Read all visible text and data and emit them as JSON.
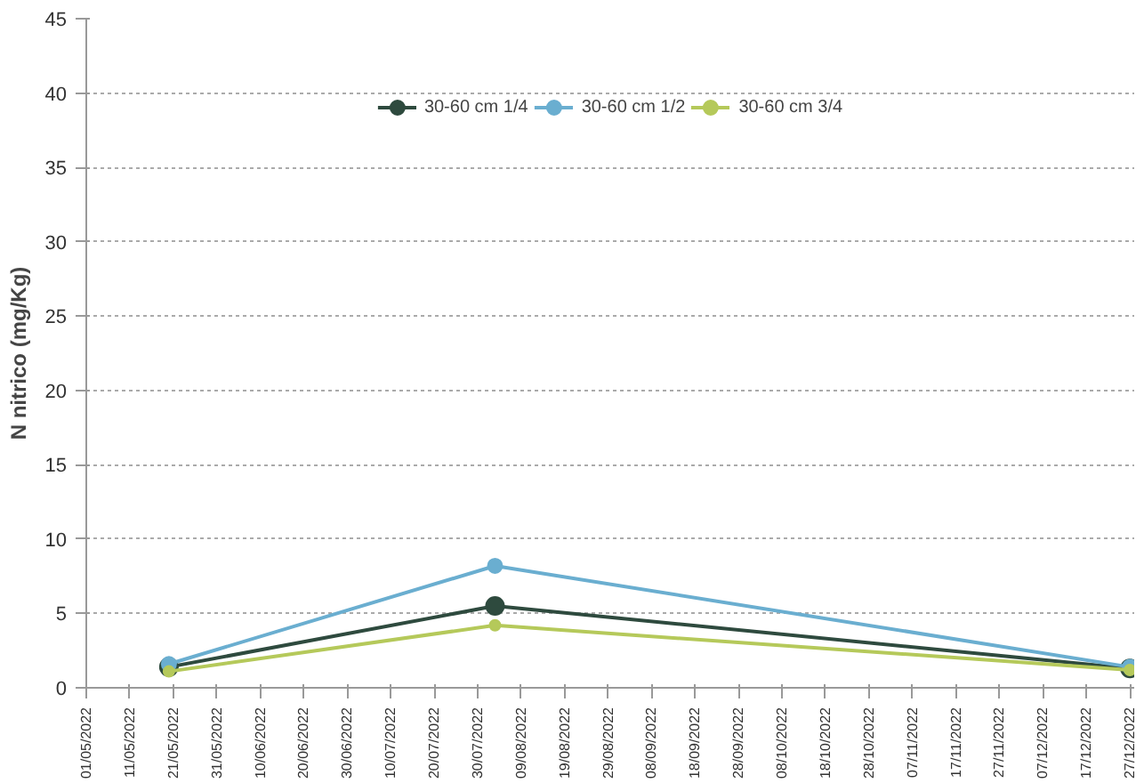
{
  "chart_data": {
    "type": "line",
    "ylabel": "N nitrico (mg/Kg)",
    "x": [
      "2022-05-20",
      "2022-08-03",
      "2022-12-27"
    ],
    "series": [
      {
        "name": "30-60 cm 1/4",
        "color": "#2e4a3e",
        "values": [
          1.4,
          5.5,
          1.3
        ]
      },
      {
        "name": "30-60 cm 1/2",
        "color": "#6aaed0",
        "values": [
          1.6,
          8.2,
          1.4
        ]
      },
      {
        "name": "30-60 cm 3/4",
        "color": "#b5c95a",
        "values": [
          1.1,
          4.2,
          1.2
        ]
      }
    ],
    "xlim": [
      "2022-05-01",
      "2022-12-28"
    ],
    "xticks": [
      {
        "value": "2022-05-01",
        "label": "01/05/2022"
      },
      {
        "value": "2022-05-11",
        "label": "11/05/2022"
      },
      {
        "value": "2022-05-21",
        "label": "21/05/2022"
      },
      {
        "value": "2022-05-31",
        "label": "31/05/2022"
      },
      {
        "value": "2022-06-10",
        "label": "10/06/2022"
      },
      {
        "value": "2022-06-20",
        "label": "20/06/2022"
      },
      {
        "value": "2022-06-30",
        "label": "30/06/2022"
      },
      {
        "value": "2022-07-10",
        "label": "10/07/2022"
      },
      {
        "value": "2022-07-20",
        "label": "20/07/2022"
      },
      {
        "value": "2022-07-30",
        "label": "30/07/2022"
      },
      {
        "value": "2022-08-09",
        "label": "09/08/2022"
      },
      {
        "value": "2022-08-19",
        "label": "19/08/2022"
      },
      {
        "value": "2022-08-29",
        "label": "29/08/2022"
      },
      {
        "value": "2022-09-08",
        "label": "08/09/2022"
      },
      {
        "value": "2022-09-18",
        "label": "18/09/2022"
      },
      {
        "value": "2022-09-28",
        "label": "28/09/2022"
      },
      {
        "value": "2022-10-08",
        "label": "08/10/2022"
      },
      {
        "value": "2022-10-18",
        "label": "18/10/2022"
      },
      {
        "value": "2022-10-28",
        "label": "28/10/2022"
      },
      {
        "value": "2022-11-07",
        "label": "07/11/2022"
      },
      {
        "value": "2022-11-17",
        "label": "17/11/2022"
      },
      {
        "value": "2022-11-27",
        "label": "27/11/2022"
      },
      {
        "value": "2022-12-07",
        "label": "07/12/2022"
      },
      {
        "value": "2022-12-17",
        "label": "17/12/2022"
      },
      {
        "value": "2022-12-27",
        "label": "27/12/2022"
      }
    ],
    "ylim": [
      0,
      45
    ],
    "yticks": [
      0,
      5,
      10,
      15,
      20,
      25,
      30,
      35,
      40,
      45
    ],
    "grid": "y",
    "legend": "top",
    "marker": "circle",
    "line_style": "solid"
  }
}
